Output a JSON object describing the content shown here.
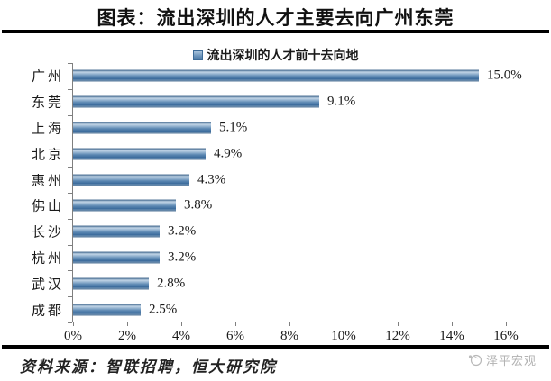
{
  "header": {
    "title": "图表：流出深圳的人才主要去向广州东莞"
  },
  "chart_data": {
    "type": "bar",
    "orientation": "horizontal",
    "title": "图表：流出深圳的人才主要去向广州东莞",
    "legend": "流出深圳的人才前十去向地",
    "legend_position": "top",
    "categories": [
      "广州",
      "东莞",
      "上海",
      "北京",
      "惠州",
      "佛山",
      "长沙",
      "杭州",
      "武汉",
      "成都"
    ],
    "values": [
      15.0,
      9.1,
      5.1,
      4.9,
      4.3,
      3.8,
      3.2,
      3.2,
      2.8,
      2.5
    ],
    "value_labels": [
      "15.0%",
      "9.1%",
      "5.1%",
      "4.9%",
      "4.3%",
      "3.8%",
      "3.2%",
      "3.2%",
      "2.8%",
      "2.5%"
    ],
    "xlabel": "",
    "ylabel": "",
    "xlim": [
      0,
      16
    ],
    "x_ticks": [
      "0%",
      "2%",
      "4%",
      "6%",
      "8%",
      "10%",
      "12%",
      "14%",
      "16%"
    ],
    "grid": false,
    "bar_color": "#4f81bd",
    "background": "#ffffff"
  },
  "footer": {
    "source": "资料来源：智联招聘，恒大研究院",
    "watermark": "泽平宏观"
  },
  "icons": {
    "legend_marker": "blue-square-marker",
    "brand_logo": "circular-sketch-logo"
  }
}
